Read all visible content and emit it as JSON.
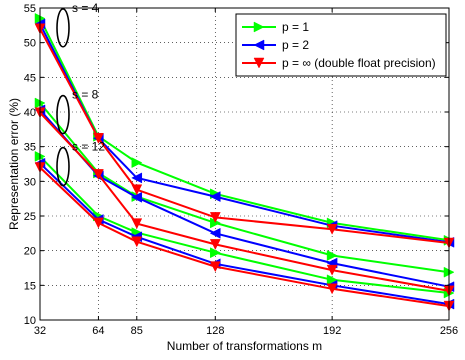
{
  "chart_data": {
    "type": "line",
    "title": "",
    "xlabel": "Number of transformations m",
    "ylabel": "Representation error (%)",
    "xlim": [
      32,
      256
    ],
    "ylim": [
      10,
      55
    ],
    "xticks": [
      32,
      64,
      85,
      128,
      192,
      256
    ],
    "yticks": [
      10,
      15,
      20,
      25,
      30,
      35,
      40,
      45,
      50,
      55
    ],
    "grid": true,
    "legend_position": "top-right",
    "x": [
      32,
      64,
      85,
      128,
      192,
      256
    ],
    "series": [
      {
        "name": "p = 1",
        "color": "#00ff00",
        "marker": "triangle-right",
        "group": "s = 4",
        "values": [
          53.5,
          36.5,
          32.7,
          28.2,
          24.0,
          21.5
        ]
      },
      {
        "name": "p = 2",
        "color": "#0000ff",
        "marker": "triangle-left",
        "group": "s = 4",
        "values": [
          52.7,
          36.2,
          30.5,
          27.8,
          23.6,
          21.2
        ]
      },
      {
        "name": "p = ∞ (double float precision)",
        "color": "#ff0000",
        "marker": "triangle-down",
        "group": "s = 4",
        "values": [
          52.0,
          36.2,
          28.8,
          24.8,
          23.1,
          21.1
        ]
      },
      {
        "name": "p = 1",
        "color": "#00ff00",
        "marker": "triangle-right",
        "group": "s = 8",
        "values": [
          41.3,
          31.2,
          27.8,
          24.0,
          19.3,
          16.9
        ]
      },
      {
        "name": "p = 2",
        "color": "#0000ff",
        "marker": "triangle-left",
        "group": "s = 8",
        "values": [
          40.3,
          30.8,
          27.7,
          22.5,
          18.2,
          14.8
        ]
      },
      {
        "name": "p = ∞ (double float precision)",
        "color": "#ff0000",
        "marker": "triangle-down",
        "group": "s = 8",
        "values": [
          39.9,
          31.0,
          23.9,
          20.9,
          17.2,
          14.2
        ]
      },
      {
        "name": "p = 1",
        "color": "#00ff00",
        "marker": "triangle-right",
        "group": "s = 12",
        "values": [
          33.6,
          25.0,
          22.6,
          19.7,
          15.8,
          13.9
        ]
      },
      {
        "name": "p = 2",
        "color": "#0000ff",
        "marker": "triangle-left",
        "group": "s = 12",
        "values": [
          32.6,
          24.5,
          22.0,
          18.1,
          15.0,
          12.3
        ]
      },
      {
        "name": "p = ∞ (double float precision)",
        "color": "#ff0000",
        "marker": "triangle-down",
        "group": "s = 12",
        "values": [
          32.0,
          24.0,
          21.3,
          17.7,
          14.5,
          12.0
        ]
      }
    ],
    "legend": [
      {
        "label": "p = 1",
        "color": "#00ff00",
        "marker": "triangle-right"
      },
      {
        "label": "p = 2",
        "color": "#0000ff",
        "marker": "triangle-left"
      },
      {
        "label": "p = ∞ (double float precision)",
        "color": "#ff0000",
        "marker": "triangle-down"
      }
    ],
    "annotations": [
      {
        "text": "s = 4",
        "x": 32,
        "y": 53
      },
      {
        "text": "s = 8",
        "x": 32,
        "y": 40.5
      },
      {
        "text": "s = 12",
        "x": 32,
        "y": 33
      }
    ]
  }
}
